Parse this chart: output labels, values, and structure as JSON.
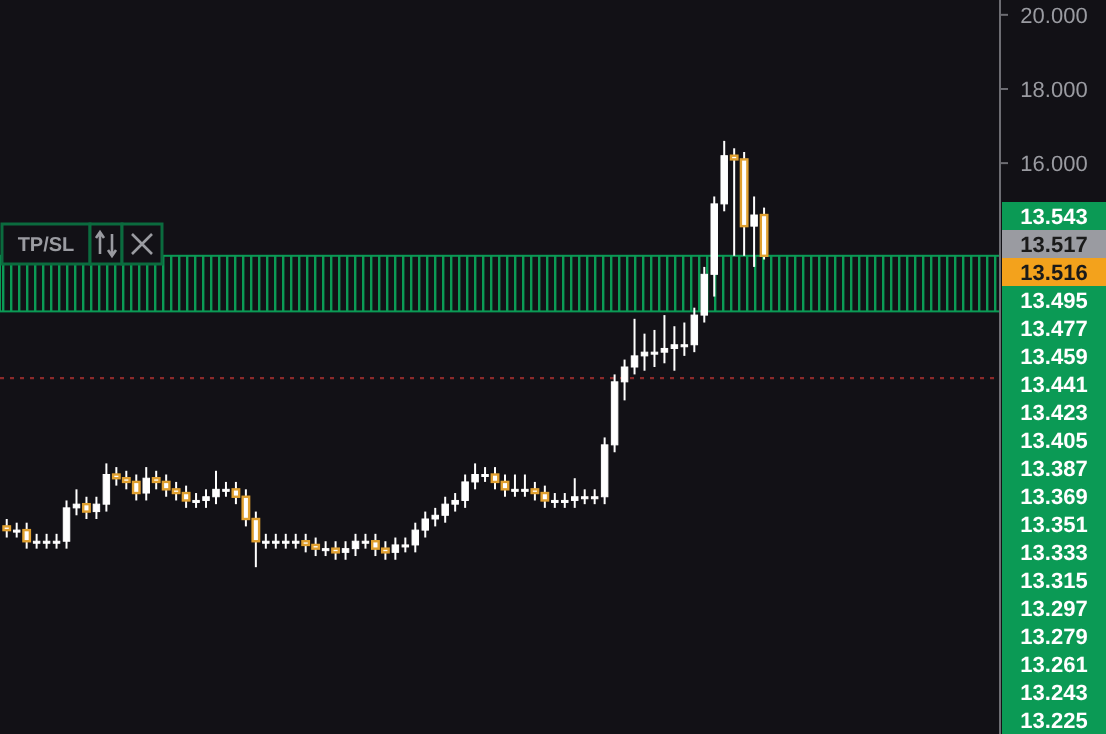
{
  "chart_data": {
    "type": "candlestick",
    "categories": [
      null,
      null,
      null,
      null,
      null,
      null,
      null,
      null,
      null,
      null,
      null,
      null,
      null,
      null,
      null,
      null,
      null,
      null,
      null,
      null,
      null,
      null,
      null,
      null,
      null,
      null,
      null,
      null,
      null,
      null,
      null,
      null,
      null,
      null,
      null,
      null,
      null,
      null,
      null,
      null,
      null,
      null,
      null,
      null,
      null,
      null,
      null,
      null,
      null,
      null,
      null,
      null,
      null,
      null,
      null,
      null,
      null,
      null,
      null,
      null,
      null,
      null,
      null,
      null,
      null,
      null,
      null,
      null,
      null,
      null,
      null,
      null,
      null,
      null,
      null,
      null,
      null,
      null,
      null,
      null,
      null,
      null,
      null,
      null,
      null,
      null,
      null,
      null,
      null,
      null,
      null,
      null,
      null,
      null,
      null,
      null,
      null,
      null,
      null,
      null
    ],
    "ohlc": [
      [
        6.2,
        6.4,
        5.9,
        6.1
      ],
      [
        6.1,
        6.3,
        5.9,
        6.1
      ],
      [
        6.1,
        6.3,
        5.6,
        5.8
      ],
      [
        5.8,
        6.0,
        5.6,
        5.8
      ],
      [
        5.8,
        6.0,
        5.6,
        5.8
      ],
      [
        5.8,
        6.0,
        5.6,
        5.8
      ],
      [
        5.8,
        6.9,
        5.6,
        6.7
      ],
      [
        6.7,
        7.2,
        6.5,
        6.8
      ],
      [
        6.8,
        7.0,
        6.4,
        6.6
      ],
      [
        6.6,
        7.0,
        6.4,
        6.8
      ],
      [
        6.8,
        7.9,
        6.6,
        7.6
      ],
      [
        7.6,
        7.8,
        7.3,
        7.5
      ],
      [
        7.5,
        7.7,
        7.2,
        7.4
      ],
      [
        7.4,
        7.6,
        6.9,
        7.1
      ],
      [
        7.1,
        7.8,
        6.9,
        7.5
      ],
      [
        7.5,
        7.7,
        7.2,
        7.4
      ],
      [
        7.4,
        7.6,
        7.0,
        7.2
      ],
      [
        7.2,
        7.4,
        6.9,
        7.1
      ],
      [
        7.1,
        7.3,
        6.7,
        6.9
      ],
      [
        6.9,
        7.1,
        6.7,
        6.9
      ],
      [
        6.9,
        7.2,
        6.7,
        7.0
      ],
      [
        7.0,
        7.7,
        6.8,
        7.2
      ],
      [
        7.2,
        7.4,
        7.0,
        7.2
      ],
      [
        7.2,
        7.4,
        6.8,
        7.0
      ],
      [
        7.0,
        7.2,
        6.2,
        6.4
      ],
      [
        6.4,
        6.6,
        5.1,
        5.8
      ],
      [
        5.8,
        6.0,
        5.6,
        5.8
      ],
      [
        5.8,
        6.0,
        5.6,
        5.8
      ],
      [
        5.8,
        6.0,
        5.6,
        5.8
      ],
      [
        5.8,
        6.0,
        5.6,
        5.8
      ],
      [
        5.8,
        6.0,
        5.5,
        5.7
      ],
      [
        5.7,
        5.9,
        5.4,
        5.6
      ],
      [
        5.6,
        5.8,
        5.4,
        5.6
      ],
      [
        5.6,
        5.8,
        5.3,
        5.5
      ],
      [
        5.5,
        5.8,
        5.3,
        5.6
      ],
      [
        5.6,
        6.0,
        5.4,
        5.8
      ],
      [
        5.8,
        6.0,
        5.6,
        5.8
      ],
      [
        5.8,
        6.0,
        5.4,
        5.6
      ],
      [
        5.6,
        5.8,
        5.3,
        5.5
      ],
      [
        5.5,
        5.9,
        5.3,
        5.7
      ],
      [
        5.7,
        5.9,
        5.5,
        5.7
      ],
      [
        5.7,
        6.3,
        5.5,
        6.1
      ],
      [
        6.1,
        6.6,
        5.9,
        6.4
      ],
      [
        6.4,
        6.7,
        6.2,
        6.5
      ],
      [
        6.5,
        7.0,
        6.3,
        6.8
      ],
      [
        6.8,
        7.1,
        6.6,
        6.9
      ],
      [
        6.9,
        7.6,
        6.7,
        7.4
      ],
      [
        7.4,
        7.9,
        7.2,
        7.6
      ],
      [
        7.6,
        7.8,
        7.4,
        7.6
      ],
      [
        7.6,
        7.8,
        7.2,
        7.4
      ],
      [
        7.4,
        7.6,
        7.0,
        7.2
      ],
      [
        7.2,
        7.6,
        7.0,
        7.2
      ],
      [
        7.2,
        7.6,
        7.0,
        7.2
      ],
      [
        7.2,
        7.4,
        6.9,
        7.1
      ],
      [
        7.1,
        7.3,
        6.7,
        6.9
      ],
      [
        6.9,
        7.1,
        6.7,
        6.9
      ],
      [
        6.9,
        7.1,
        6.7,
        6.9
      ],
      [
        6.9,
        7.5,
        6.7,
        7.0
      ],
      [
        7.0,
        7.2,
        6.8,
        7.0
      ],
      [
        7.0,
        7.2,
        6.8,
        7.0
      ],
      [
        7.0,
        8.6,
        6.8,
        8.4
      ],
      [
        8.4,
        10.3,
        8.2,
        10.1
      ],
      [
        10.1,
        10.7,
        9.6,
        10.5
      ],
      [
        10.5,
        11.8,
        10.3,
        10.8
      ],
      [
        10.8,
        11.4,
        10.4,
        10.9
      ],
      [
        10.9,
        11.5,
        10.5,
        10.9
      ],
      [
        10.9,
        11.9,
        10.6,
        11.0
      ],
      [
        11.0,
        11.6,
        10.4,
        11.1
      ],
      [
        11.1,
        11.7,
        10.8,
        11.1
      ],
      [
        11.1,
        12.1,
        10.9,
        11.9
      ],
      [
        11.9,
        13.2,
        11.7,
        13.0
      ],
      [
        13.0,
        15.1,
        12.4,
        14.9
      ],
      [
        14.9,
        16.6,
        14.7,
        16.2
      ],
      [
        16.2,
        16.4,
        13.5,
        16.1
      ],
      [
        16.1,
        16.3,
        13.5,
        14.3
      ],
      [
        14.3,
        15.1,
        13.2,
        14.6
      ],
      [
        14.6,
        14.8,
        13.4,
        13.5
      ],
      null,
      null,
      null,
      null,
      null,
      null,
      null,
      null,
      null,
      null,
      null,
      null,
      null,
      null,
      null,
      null,
      null,
      null,
      null,
      null,
      null,
      null,
      null
    ],
    "color": "#ffffff",
    "ylim": [
      0.6,
      20.4
    ],
    "yticks": [
      {
        "value": 16,
        "label": "16.000"
      },
      {
        "value": 18,
        "label": "18.000"
      },
      {
        "value": 20,
        "label": "20.000"
      }
    ],
    "tick_labels": "y",
    "grid": false,
    "bands": [
      {
        "axis": "y",
        "from": 12.0,
        "to": 13.5,
        "color": "#0b9a55"
      }
    ],
    "ref_lines": [
      {
        "axis": "y",
        "value": 10.2,
        "color": "#8b2a2a",
        "line_style": "dotted"
      }
    ],
    "annotations": [
      "TP/SL",
      "13.543",
      "13.517",
      "13.516",
      "13.495",
      "13.477",
      "13.459",
      "13.441",
      "13.423",
      "13.405",
      "13.387",
      "13.369",
      "13.351",
      "13.333",
      "13.315",
      "13.297",
      "13.279",
      "13.261",
      "13.243",
      "13.225"
    ]
  }
}
